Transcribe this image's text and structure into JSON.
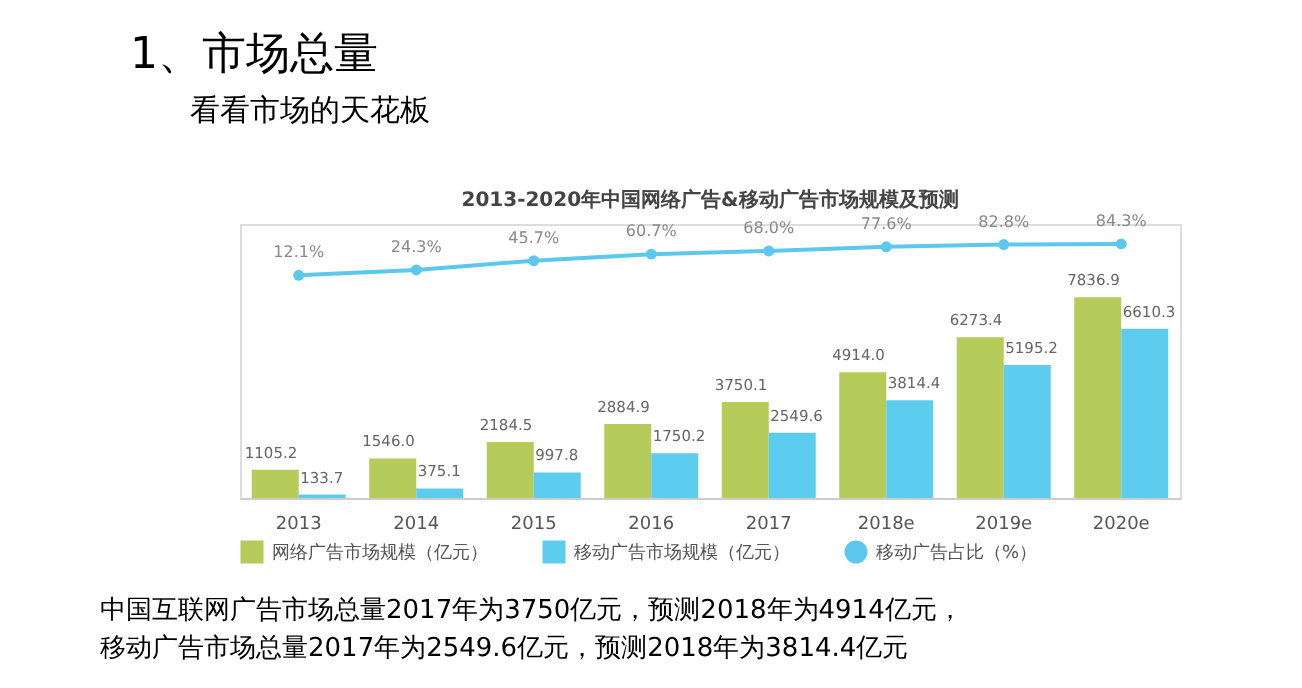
{
  "chart_data": {
    "type": "bar",
    "title": "2013-2020年中国网络广告&移动广告市场规模及预测",
    "categories": [
      "2013",
      "2014",
      "2015",
      "2016",
      "2017",
      "2018e",
      "2019e",
      "2020e"
    ],
    "series": [
      {
        "name": "网络广告市场规模（亿元）",
        "color": "#b5cb5a",
        "values": [
          1105.2,
          1546.0,
          2184.5,
          2884.9,
          3750.1,
          4914.0,
          6273.4,
          7836.9
        ],
        "value_labels": [
          "1105.2",
          "1546.0",
          "2184.5",
          "2884.9",
          "3750.1",
          "4914.0",
          "6273.4",
          "7836.9"
        ]
      },
      {
        "name": "移动广告市场规模（亿元）",
        "color": "#5ccdee",
        "values": [
          133.7,
          375.1,
          997.8,
          1750.2,
          2549.6,
          3814.4,
          5195.2,
          6610.3
        ],
        "value_labels": [
          "133.7",
          "375.1",
          "997.8",
          "1750.2",
          "2549.6",
          "3814.4",
          "5195.2",
          "6610.3"
        ]
      },
      {
        "name": "移动广告占比（%）",
        "type": "line",
        "axis": "y2",
        "color": "#5cc8ec",
        "values": [
          12.1,
          24.3,
          45.7,
          60.7,
          68.0,
          77.6,
          82.8,
          84.3
        ],
        "value_labels": [
          "12.1%",
          "24.3%",
          "45.7%",
          "60.7%",
          "68.0%",
          "77.6%",
          "82.8%",
          "84.3%"
        ]
      }
    ],
    "data_labels": true,
    "ylim": [
      0,
      10700
    ],
    "y2lim": [
      -500,
      130
    ],
    "tick_labels": "x",
    "grid": false,
    "legend": "bottom",
    "marker": "circle",
    "line_style": "solid",
    "annotations": [
      "1、市场总量",
      "看看市场的天花板",
      "中国互联网广告市场总量2017年为3750亿元，预测2018年为4914亿元，",
      "移动广告市场总量2017年为2549.6亿元，预测2018年为3814.4亿元"
    ]
  }
}
